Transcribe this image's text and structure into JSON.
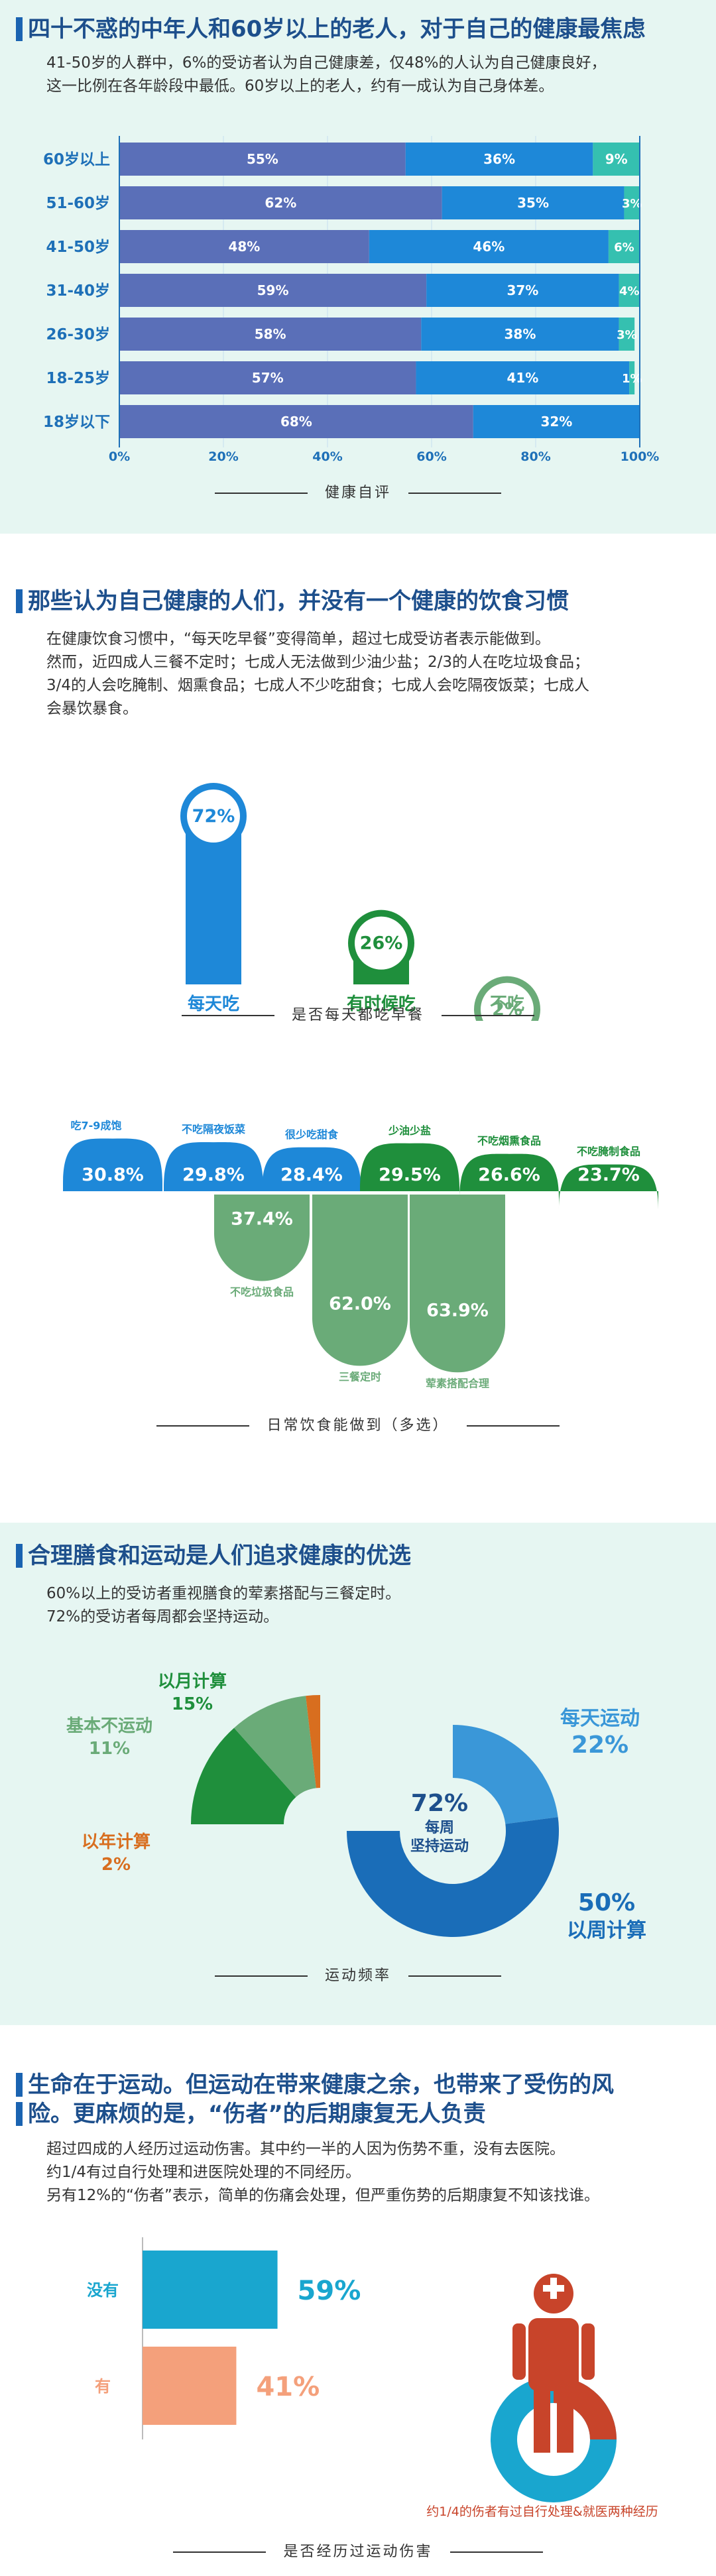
{
  "sections": {
    "health": {
      "title": "四十不惑的中年人和60岁以上的老人，对于自己的健康最焦虑",
      "desc1": "41-50岁的人群中，6%的受访者认为自己健康差，仅48%的人认为自己健康良好，",
      "desc2": "这一比例在各年龄段中最低。60岁以上的老人，约有一成认为自己身体差。",
      "caption": "健康自评"
    },
    "diet": {
      "title": "那些认为自己健康的人们，并没有一个健康的饮食习惯",
      "desc1": "在健康饮食习惯中，“每天吃早餐”变得简单，超过七成受访者表示能做到。",
      "desc2": "然而，近四成人三餐不定时；七成人无法做到少油少盐；2/3的人在吃垃圾食品；",
      "desc3": "3/4的人会吃腌制、烟熏食品；七成人不少吃甜食；七成人会吃隔夜饭菜；七成人",
      "desc4": "会暴饮暴食。",
      "caption_breakfast": "是否每天都吃早餐",
      "caption_habits": "日常饮食能做到（多选）"
    },
    "exercise": {
      "title": "合理膳食和运动是人们追求健康的优选",
      "desc1": "60%以上的受访者重视膳食的荤素搭配与三餐定时。",
      "desc2": "72%的受访者每周都会坚持运动。",
      "center_pct": "72%",
      "center_label1": "每周",
      "center_label2": "坚持运动",
      "caption": "运动频率"
    },
    "injury": {
      "title1": "生命在于运动。但运动在带来健康之余，也带来了受伤的风",
      "title2": "险。更麻烦的是，“伤者”的后期康复无人负责",
      "desc1": "超过四成的人经历过运动伤害。其中约一半的人因为伤势不重，没有去医院。",
      "desc2": "约1/4有过自行处理和进医院处理的不同经历。",
      "desc3": "另有12%的“伤者”表示，简单的伤痛会处理，但严重伤势的后期康复不知该找谁。",
      "icon_note": "约1/4的伤者有过自行处理&就医两种经历",
      "caption": "是否经历过运动伤害"
    }
  },
  "colors": {
    "dark_blue": "#5a6fb8",
    "mid_blue": "#1e88d8",
    "teal": "#35c0b0",
    "green_dark": "#1f8f3c",
    "green_light": "#6aab78",
    "orange": "#d86e1f",
    "cyan": "#19a6cf",
    "salmon": "#f4a07b",
    "red": "#c8442a"
  },
  "chart_data": [
    {
      "type": "bar",
      "stacked": true,
      "orientation": "horizontal",
      "categories": [
        "60岁以上",
        "51-60岁",
        "41-50岁",
        "31-40岁",
        "26-30岁",
        "18-25岁",
        "18岁以下"
      ],
      "series": [
        {
          "values": [
            55,
            62,
            48,
            59,
            58,
            57,
            68
          ],
          "labels": [
            "55%",
            "62%",
            "48%",
            "59%",
            "58%",
            "57%",
            "68%"
          ]
        },
        {
          "values": [
            36,
            35,
            46,
            37,
            38,
            41,
            32
          ],
          "labels": [
            "36%",
            "35%",
            "46%",
            "37%",
            "38%",
            "41%",
            "32%"
          ]
        },
        {
          "values": [
            9,
            3,
            6,
            4,
            3,
            1,
            0
          ],
          "labels": [
            "9%",
            "3%",
            "6%",
            "4%",
            "3%",
            "1%",
            ""
          ]
        }
      ],
      "xticks": [
        "0%",
        "20%",
        "40%",
        "60%",
        "80%",
        "100%"
      ],
      "xlim": [
        0,
        100
      ],
      "grid": true
    },
    {
      "type": "bar",
      "categories": [
        "每天吃",
        "有时候吃",
        "不吃"
      ],
      "values": [
        72,
        26,
        2
      ],
      "labels": [
        "72%",
        "26%",
        "2%"
      ]
    },
    {
      "type": "bar",
      "categories": [
        "吃7-9成饱",
        "不吃隔夜饭菜",
        "很少吃甜食",
        "少油少盐",
        "不吃烟熏食品",
        "不吃腌制食品",
        "不吃垃圾食品",
        "三餐定时",
        "荤素搭配合理"
      ],
      "values": [
        30.8,
        29.8,
        28.4,
        29.5,
        26.6,
        23.7,
        37.4,
        62.0,
        63.9
      ],
      "labels": [
        "30.8%",
        "29.8%",
        "28.4%",
        "29.5%",
        "26.6%",
        "23.7%",
        "37.4%",
        "62.0%",
        "63.9%"
      ]
    },
    {
      "type": "pie",
      "categories": [
        "每天运动",
        "以周计算",
        "以月计算",
        "基本不运动",
        "以年计算"
      ],
      "values": [
        22,
        50,
        15,
        11,
        2
      ],
      "labels": [
        "22%",
        "50%",
        "15%",
        "11%",
        "2%"
      ]
    },
    {
      "type": "bar",
      "orientation": "horizontal",
      "categories": [
        "没有",
        "有"
      ],
      "values": [
        59,
        41
      ],
      "labels": [
        "59%",
        "41%"
      ]
    }
  ]
}
